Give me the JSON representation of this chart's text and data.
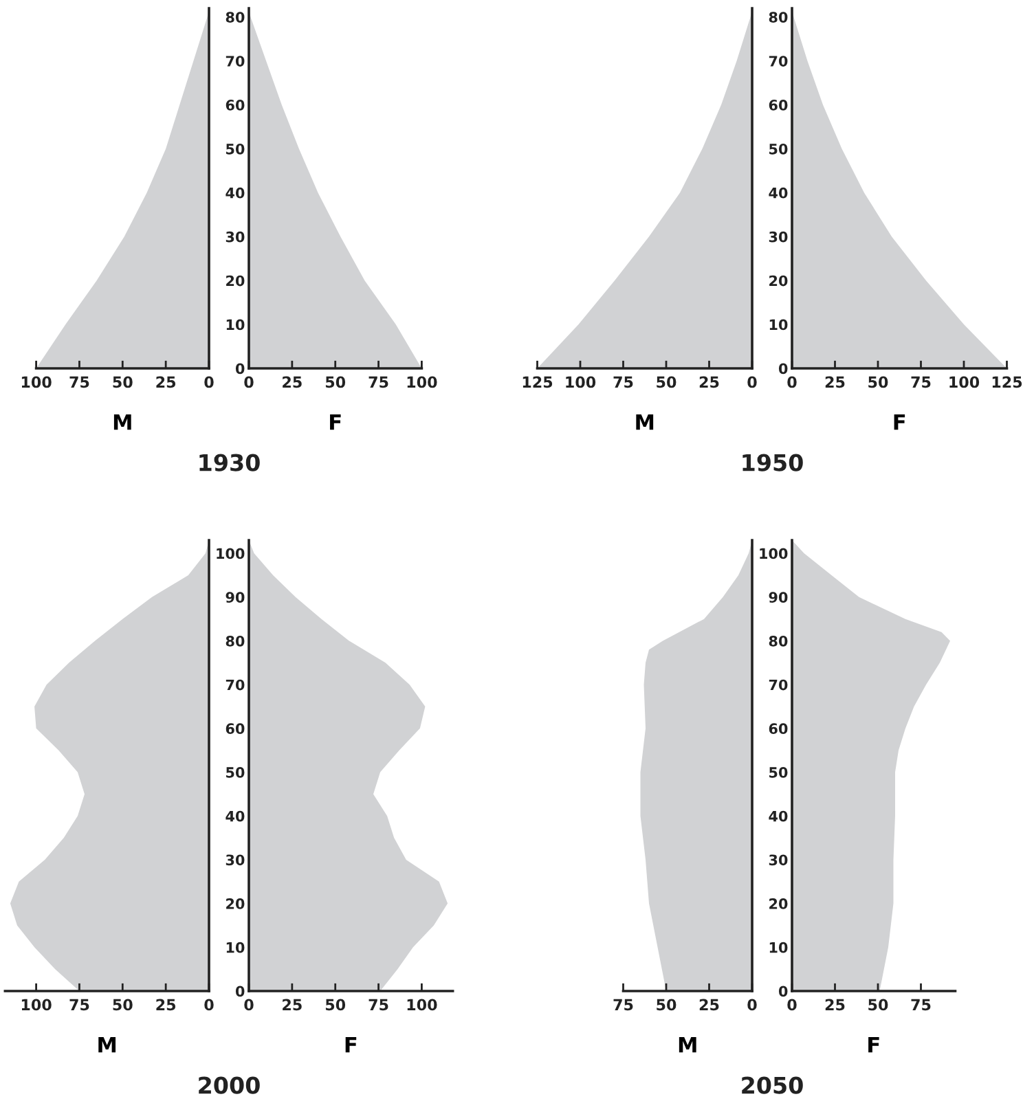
{
  "chart_data": [
    {
      "type": "area",
      "orientation": "horizontal",
      "xlabel": "M",
      "annotations": [
        "1930"
      ],
      "color": "#d1d2d4",
      "tick_labels": "x",
      "x": [
        0,
        10,
        20,
        30,
        40,
        50,
        60,
        70,
        80,
        82
      ],
      "values": [
        100,
        83,
        65,
        49,
        36,
        25,
        17,
        9,
        1,
        0
      ],
      "xlim": [
        100,
        0
      ],
      "xticks": [
        100,
        75,
        50,
        25,
        0
      ],
      "ylim": [
        0,
        82
      ]
    },
    {
      "type": "area",
      "orientation": "horizontal",
      "xlabel": "F",
      "color": "#d1d2d4",
      "x": [
        0,
        10,
        20,
        30,
        40,
        50,
        60,
        70,
        80,
        82
      ],
      "values": [
        100,
        85,
        67,
        53,
        40,
        29,
        19,
        10,
        1,
        0
      ],
      "xlim": [
        0,
        100
      ],
      "xticks": [
        0,
        25,
        50,
        75,
        100
      ],
      "ylim": [
        0,
        82
      ],
      "yticks": [
        0,
        10,
        20,
        30,
        40,
        50,
        60,
        70,
        80
      ]
    },
    {
      "type": "area",
      "orientation": "horizontal",
      "xlabel": "M",
      "annotations": [
        "1950"
      ],
      "color": "#d1d2d4",
      "tick_labels": "x",
      "x": [
        0,
        10,
        20,
        30,
        40,
        50,
        60,
        70,
        80,
        82
      ],
      "values": [
        125,
        101,
        80,
        60,
        42,
        29,
        18,
        9,
        1,
        0
      ],
      "xlim": [
        125,
        0
      ],
      "xticks": [
        125,
        100,
        75,
        50,
        25,
        0
      ],
      "ylim": [
        0,
        82
      ]
    },
    {
      "type": "area",
      "orientation": "horizontal",
      "xlabel": "F",
      "color": "#d1d2d4",
      "x": [
        0,
        10,
        20,
        30,
        40,
        50,
        60,
        70,
        80,
        82
      ],
      "values": [
        125,
        100,
        78,
        58,
        42,
        29,
        18,
        9,
        1,
        0
      ],
      "xlim": [
        0,
        125
      ],
      "xticks": [
        0,
        25,
        50,
        75,
        100,
        125
      ],
      "ylim": [
        0,
        82
      ],
      "yticks": [
        0,
        10,
        20,
        30,
        40,
        50,
        60,
        70,
        80
      ]
    },
    {
      "type": "area",
      "orientation": "horizontal",
      "xlabel": "M",
      "annotations": [
        "2000"
      ],
      "color": "#d1d2d4",
      "tick_labels": "x",
      "x": [
        0,
        5,
        10,
        15,
        20,
        25,
        30,
        35,
        40,
        45,
        50,
        55,
        60,
        65,
        70,
        75,
        80,
        85,
        90,
        95,
        100,
        103
      ],
      "values": [
        75,
        89,
        101,
        111,
        115,
        110,
        95,
        84,
        76,
        72,
        76,
        87,
        100,
        101,
        94,
        81,
        66,
        50,
        33,
        12,
        2,
        0
      ],
      "xlim": [
        118,
        0
      ],
      "xticks": [
        100,
        75,
        50,
        25,
        0
      ],
      "ylim": [
        0,
        103
      ]
    },
    {
      "type": "area",
      "orientation": "horizontal",
      "xlabel": "F",
      "color": "#d1d2d4",
      "x": [
        0,
        5,
        10,
        15,
        20,
        25,
        30,
        35,
        40,
        45,
        50,
        55,
        60,
        65,
        70,
        75,
        80,
        85,
        90,
        95,
        100,
        103
      ],
      "values": [
        76,
        86,
        95,
        107,
        115,
        110,
        91,
        84,
        80,
        72,
        76,
        87,
        99,
        102,
        93,
        79,
        58,
        42,
        27,
        14,
        3,
        0
      ],
      "xlim": [
        0,
        118
      ],
      "xticks": [
        0,
        25,
        50,
        75,
        100
      ],
      "ylim": [
        0,
        103
      ],
      "yticks": [
        0,
        10,
        20,
        30,
        40,
        50,
        60,
        70,
        80,
        90,
        100
      ]
    },
    {
      "type": "area",
      "orientation": "horizontal",
      "xlabel": "M",
      "annotations": [
        "2050"
      ],
      "color": "#d1d2d4",
      "tick_labels": "x",
      "x": [
        0,
        10,
        20,
        30,
        40,
        50,
        60,
        70,
        75,
        78,
        80,
        85,
        90,
        95,
        100,
        103
      ],
      "values": [
        50,
        55,
        60,
        62,
        65,
        65,
        62,
        63,
        62,
        60,
        52,
        28,
        17,
        8,
        2,
        0
      ],
      "xlim": [
        75,
        0
      ],
      "xticks": [
        75,
        50,
        25,
        0
      ],
      "ylim": [
        0,
        103
      ]
    },
    {
      "type": "area",
      "orientation": "horizontal",
      "xlabel": "F",
      "color": "#d1d2d4",
      "x": [
        0,
        10,
        20,
        30,
        40,
        50,
        55,
        60,
        65,
        70,
        75,
        80,
        82,
        85,
        90,
        95,
        100,
        103
      ],
      "values": [
        51,
        56,
        59,
        59,
        60,
        60,
        62,
        66,
        71,
        78,
        86,
        92,
        87,
        66,
        39,
        23,
        7,
        0
      ],
      "xlim": [
        0,
        95
      ],
      "xticks": [
        0,
        25,
        50,
        75
      ],
      "ylim": [
        0,
        103
      ],
      "yticks": [
        0,
        10,
        20,
        30,
        40,
        50,
        60,
        70,
        80,
        90,
        100
      ]
    }
  ]
}
